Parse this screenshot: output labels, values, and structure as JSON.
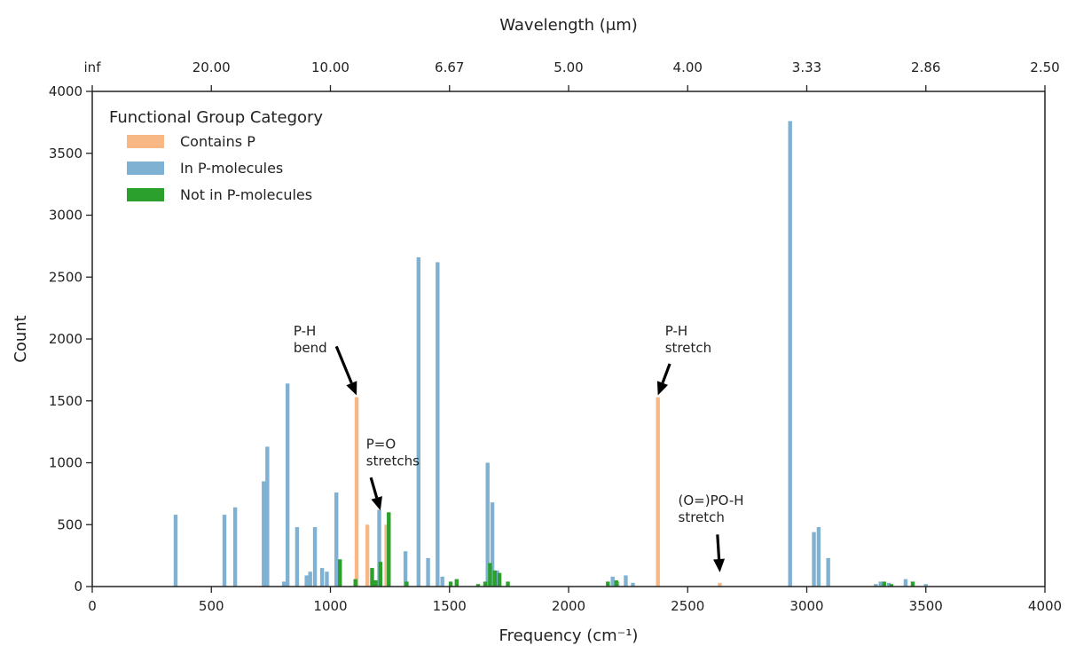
{
  "chart_data": {
    "type": "bar",
    "xlabel": "Frequency (cm⁻¹)",
    "ylabel": "Count",
    "top_axis_label": "Wavelength (μm)",
    "xlim": [
      0,
      4000
    ],
    "ylim": [
      0,
      4000
    ],
    "x_ticks": [
      0,
      500,
      1000,
      1500,
      2000,
      2500,
      3000,
      3500,
      4000
    ],
    "y_ticks": [
      0,
      500,
      1000,
      1500,
      2000,
      2500,
      3000,
      3500,
      4000
    ],
    "top_ticks": [
      {
        "x": 0,
        "label": "inf"
      },
      {
        "x": 500,
        "label": "20.00"
      },
      {
        "x": 1000,
        "label": "10.00"
      },
      {
        "x": 1500,
        "label": "6.67"
      },
      {
        "x": 2000,
        "label": "5.00"
      },
      {
        "x": 2500,
        "label": "4.00"
      },
      {
        "x": 3000,
        "label": "3.33"
      },
      {
        "x": 3500,
        "label": "2.86"
      },
      {
        "x": 4000,
        "label": "2.50"
      }
    ],
    "bin_width": 20,
    "legend": {
      "title": "Functional Group Category",
      "placement": "top-left"
    },
    "grid": false,
    "series": [
      {
        "name": "In P-molecules",
        "color": "#7fb1d3",
        "points": [
          [
            350,
            580
          ],
          [
            555,
            580
          ],
          [
            600,
            640
          ],
          [
            720,
            850
          ],
          [
            735,
            1130
          ],
          [
            805,
            40
          ],
          [
            820,
            1640
          ],
          [
            860,
            480
          ],
          [
            900,
            90
          ],
          [
            915,
            120
          ],
          [
            935,
            480
          ],
          [
            965,
            150
          ],
          [
            985,
            120
          ],
          [
            1025,
            760
          ],
          [
            1205,
            620
          ],
          [
            1315,
            285
          ],
          [
            1370,
            2660
          ],
          [
            1410,
            230
          ],
          [
            1450,
            2620
          ],
          [
            1470,
            80
          ],
          [
            1660,
            1000
          ],
          [
            1680,
            680
          ],
          [
            1700,
            130
          ],
          [
            2185,
            80
          ],
          [
            2205,
            40
          ],
          [
            2240,
            90
          ],
          [
            2270,
            30
          ],
          [
            2930,
            3760
          ],
          [
            3030,
            440
          ],
          [
            3050,
            480
          ],
          [
            3090,
            230
          ],
          [
            3290,
            20
          ],
          [
            3310,
            40
          ],
          [
            3345,
            30
          ],
          [
            3415,
            60
          ],
          [
            3500,
            20
          ]
        ]
      },
      {
        "name": "Contains P",
        "color": "#f7b885",
        "points": [
          [
            1110,
            1530
          ],
          [
            1155,
            500
          ],
          [
            1235,
            500
          ],
          [
            2375,
            1530
          ],
          [
            2635,
            30
          ]
        ]
      },
      {
        "name": "Not in P-molecules",
        "color": "#2ca02c",
        "points": [
          [
            1040,
            220
          ],
          [
            1105,
            60
          ],
          [
            1175,
            150
          ],
          [
            1190,
            50
          ],
          [
            1210,
            200
          ],
          [
            1245,
            600
          ],
          [
            1320,
            40
          ],
          [
            1505,
            40
          ],
          [
            1530,
            60
          ],
          [
            1620,
            20
          ],
          [
            1650,
            40
          ],
          [
            1670,
            190
          ],
          [
            1690,
            130
          ],
          [
            1710,
            110
          ],
          [
            1745,
            40
          ],
          [
            2165,
            40
          ],
          [
            2200,
            50
          ],
          [
            3325,
            40
          ],
          [
            3355,
            20
          ],
          [
            3445,
            40
          ]
        ]
      }
    ],
    "annotations": [
      {
        "lines": [
          "P-H",
          "bend"
        ],
        "target": [
          1110,
          1530
        ],
        "text_pos": [
          845,
          2030
        ],
        "tail": [
          1025,
          1940
        ]
      },
      {
        "lines": [
          "P=O",
          "stretchs"
        ],
        "target": [
          1210,
          600
        ],
        "text_pos": [
          1150,
          1115
        ],
        "tail": [
          1170,
          880
        ]
      },
      {
        "lines": [
          "P-H",
          "stretch"
        ],
        "target": [
          2375,
          1530
        ],
        "text_pos": [
          2405,
          2030
        ],
        "tail": [
          2425,
          1800
        ]
      },
      {
        "lines": [
          "(O=)PO-H",
          "stretch"
        ],
        "target": [
          2635,
          100
        ],
        "text_pos": [
          2460,
          660
        ],
        "tail": [
          2625,
          420
        ]
      }
    ]
  }
}
